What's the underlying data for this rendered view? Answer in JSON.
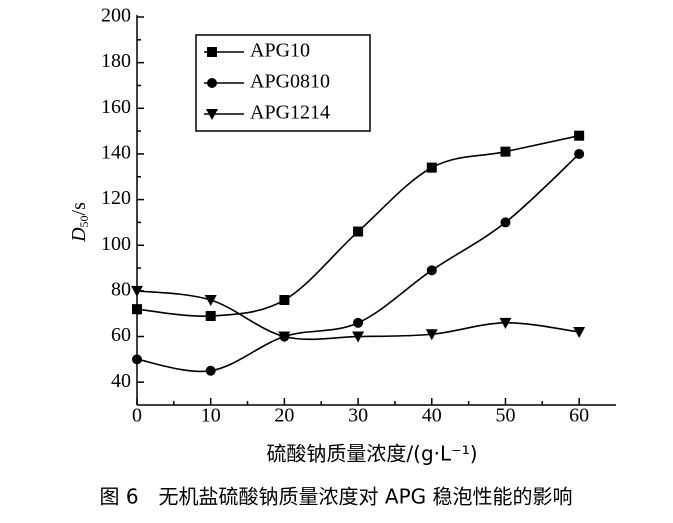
{
  "chart_data": {
    "type": "line",
    "x_label": "硫酸钠质量浓度/(g·L⁻¹)",
    "y_label": {
      "main": "D",
      "sub": "50",
      "unit": "/s"
    },
    "caption": "图 6　无机盐硫酸钠质量浓度对 APG 稳泡性能的影响",
    "x": [
      0,
      10,
      20,
      30,
      40,
      50,
      60
    ],
    "series": [
      {
        "name": "APG10",
        "color": "#000000",
        "marker": "square",
        "values": [
          72,
          69,
          76,
          106,
          134,
          141,
          148
        ]
      },
      {
        "name": "APG0810",
        "color": "#000000",
        "marker": "circle",
        "values": [
          50,
          45,
          60,
          66,
          89,
          110,
          140
        ]
      },
      {
        "name": "APG1214",
        "color": "#000000",
        "marker": "triangle-down",
        "values": [
          80,
          76,
          60,
          60,
          61,
          66,
          62
        ]
      }
    ],
    "xlim": [
      0,
      65
    ],
    "ylim": [
      30,
      200
    ],
    "xticks": [
      0,
      10,
      20,
      30,
      40,
      50,
      60
    ],
    "yticks": [
      40,
      60,
      80,
      100,
      120,
      140,
      160,
      180,
      200
    ],
    "smooth": true,
    "legend": "upper left"
  }
}
